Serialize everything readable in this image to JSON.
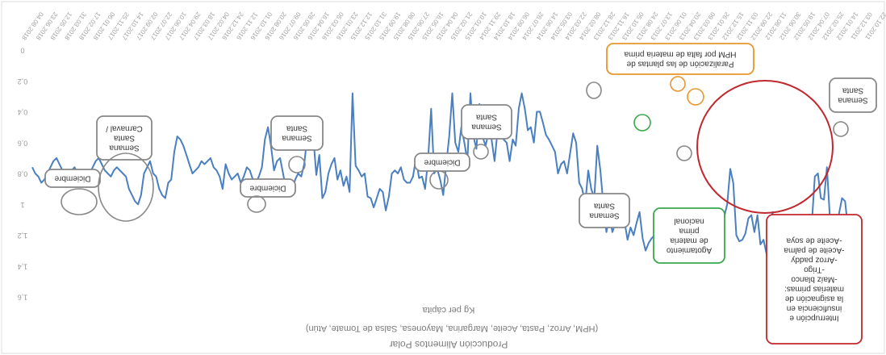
{
  "chart_data": {
    "type": "line",
    "title": "Producción Alimentos Polar",
    "subtitle": "(HPM, Arroz, Pasta, Aceite, Margarina, Mayonesa, Salsa de Tomate, Atún)",
    "ylabel": "Kg per cápita",
    "xlabel": "",
    "y_axis_reversed": true,
    "display_rotated_180": true,
    "ylim": [
      0,
      1.6
    ],
    "y_ticks": [
      "0",
      "0,2",
      "0,4",
      "0,6",
      "0,8",
      "1",
      "1,2",
      "1,4",
      "1,6"
    ],
    "x_tick_labels": [
      "22.10.2011",
      "03.12.2011",
      "14.01.2012",
      "25.02.2012",
      "07.04.2012",
      "19.05.2012",
      "30.06.2012",
      "11.08.2012",
      "22.09.2012",
      "03.11.2012",
      "15.12.2012",
      "26.01.2013",
      "09.03.2013",
      "20.04.2013",
      "01.06.2013",
      "13.07.2013",
      "24.08.2013",
      "05.10.2013",
      "16.11.2013",
      "28.12.2013",
      "08.02.2014",
      "22.03.2014",
      "03.05.2014",
      "14.06.2014",
      "26.07.2014",
      "06.09.2014",
      "18.10.2014",
      "29.11.2014",
      "10.01.2015",
      "21.02.2015",
      "04.04.2015",
      "16.05.2015",
      "27.06.2015",
      "08.08.2015",
      "19.09.2015",
      "31.10.2015",
      "12.12.2015",
      "23.01.2016",
      "05.03.2016",
      "16.04.2016",
      "28.05.2016",
      "09.07.2016",
      "20.08.2016",
      "01.10.2016",
      "12.11.2016",
      "24.12.2016",
      "04.02.2017",
      "18.03.2017",
      "29.04.2017",
      "10.06.2017",
      "22.07.2017",
      "02.09.2017",
      "14.10.2017",
      "25.11.2017",
      "06.01.2018",
      "17.02.2018",
      "31.03.2018",
      "12.05.2018",
      "23.06.2018",
      "04.08.2018"
    ],
    "series": [
      {
        "color": "#4a7fc1",
        "values": [
          1.22,
          1.24,
          1.2,
          1.22,
          1.16,
          0.98,
          0.96,
          1.06,
          1.14,
          1.18,
          1.1,
          0.76,
          0.97,
          0.96,
          0.8,
          0.82,
          1.12,
          1.13,
          1.19,
          1.28,
          1.24,
          1.24,
          1.25,
          1.17,
          1.2,
          1.27,
          1.26,
          1.27,
          1.26,
          1.05,
          1.31,
          1.32,
          1.23,
          1.26,
          1.07,
          1.18,
          1.07,
          1.09,
          1.19,
          1.23,
          1.24,
          1.2,
          0.86,
          0.77,
          1.0,
          1.08,
          1.12,
          1.21,
          1.25,
          1.21,
          1.28,
          1.34,
          1.28,
          1.29,
          1.25,
          1.17,
          1.19,
          1.23,
          1.27,
          1.33,
          1.35,
          1.31,
          1.2,
          1.22,
          1.22,
          1.38,
          1.27,
          1.25,
          1.2,
          1.22,
          1.25,
          1.3,
          1.22,
          1.05,
          1.12,
          1.2,
          1.15,
          1.23,
          1.11,
          1.06,
          1.0,
          1.12,
          1.18,
          1.07,
          1.18,
          1.0,
          0.78,
          0.62,
          0.96,
          0.9,
          0.78,
          1.0,
          0.9,
          0.86,
          0.6,
          0.54,
          0.67,
          0.8,
          0.72,
          0.74,
          0.8,
          0.66,
          0.62,
          0.58,
          0.55,
          0.47,
          0.4,
          0.4,
          0.6,
          0.5,
          0.52,
          0.38,
          0.28,
          0.38,
          0.62,
          0.58,
          0.72,
          0.6,
          0.58,
          0.36,
          0.52,
          0.72,
          0.58,
          0.54,
          0.62,
          0.56,
          0.35,
          0.64,
          0.56,
          0.28,
          0.72,
          0.6,
          0.5,
          0.66,
          0.6,
          0.28,
          0.56,
          0.74,
          0.94,
          0.84,
          0.77,
          0.8,
          0.38,
          0.71,
          0.9,
          0.82,
          0.83,
          0.7,
          0.82,
          0.86,
          0.86,
          0.84,
          0.76,
          0.8,
          0.78,
          0.8,
          0.95,
          1.04,
          0.92,
          0.9,
          0.96,
          1.02,
          0.96,
          0.95,
          0.8,
          0.82,
          0.78,
          0.75,
          0.28,
          0.92,
          0.82,
          0.88,
          0.78,
          0.84,
          0.7,
          0.74,
          0.8,
          0.92,
          0.96,
          0.68,
          0.81,
          0.56,
          0.47,
          0.56,
          0.74,
          0.82,
          0.8,
          0.84,
          0.92,
          0.94,
          0.9,
          0.8,
          0.7,
          0.72,
          0.78,
          0.62,
          0.5,
          0.58,
          0.76,
          0.82,
          0.86,
          0.84,
          0.78,
          0.76,
          0.82,
          0.86,
          0.8,
          0.82,
          0.84,
          0.8,
          0.74,
          0.9,
          0.82,
          0.78,
          0.76,
          0.7,
          0.72,
          0.74,
          0.72,
          0.76,
          0.78,
          0.8,
          0.74,
          0.68,
          0.62,
          0.58,
          0.56,
          0.66,
          0.84,
          0.86,
          0.96,
          0.94,
          0.9,
          0.82,
          0.8,
          0.72,
          0.76,
          0.8,
          0.94,
          1.0,
          0.98,
          0.94,
          0.9,
          0.82,
          0.8,
          0.78,
          0.76,
          0.78,
          0.82,
          0.8,
          0.78,
          0.74,
          0.7,
          0.72,
          0.76,
          0.8,
          0.84,
          0.86,
          0.82,
          0.8,
          0.76,
          0.78,
          0.82,
          0.8,
          0.78,
          0.74,
          0.7,
          0.72,
          0.76,
          0.8,
          0.84,
          0.86,
          0.82,
          0.8,
          0.76
        ]
      }
    ],
    "annotations": [
      {
        "id": "dic1",
        "text": [
          "Diciembre"
        ],
        "border": "#888888",
        "circle_color": "#888888"
      },
      {
        "id": "carnaval",
        "text": [
          "Carnaval /",
          "Santa",
          "Semana"
        ],
        "border": "#888888",
        "circle_color": "#888888"
      },
      {
        "id": "dic2",
        "text": [
          "Diciembre"
        ],
        "border": "#888888",
        "circle_color": "#888888"
      },
      {
        "id": "santa2",
        "text": [
          "Santa",
          "Semana"
        ],
        "border": "#888888",
        "circle_color": "#888888"
      },
      {
        "id": "dic3",
        "text": [
          "Diciembre"
        ],
        "border": "#888888",
        "circle_color": "#888888"
      },
      {
        "id": "santa3",
        "text": [
          "Santa",
          "Semana"
        ],
        "border": "#888888",
        "circle_color": "#888888"
      },
      {
        "id": "santa4",
        "text": [
          "Santa",
          "Semana"
        ],
        "border": "#888888",
        "circle_color": "#888888"
      },
      {
        "id": "agot",
        "text": [
          "nacional",
          "prima",
          "de materia",
          "Agotamiento"
        ],
        "border": "#3aa84a",
        "circle_color": "#3aa84a"
      },
      {
        "id": "hpm",
        "text": [
          "HPM por falta de materia prima",
          "Paralización de las plantas de"
        ],
        "border": "#e8962e",
        "circle_color": "#e8962e"
      },
      {
        "id": "santa5",
        "text": [
          "Santa",
          "Semana"
        ],
        "border": "#888888",
        "circle_color": "#888888"
      },
      {
        "id": "interr",
        "text": [
          "-Aceite de soya",
          "-Aceite de palma",
          "-Arroz paddy",
          "-Trigo",
          "-Maíz blanco",
          "materias primas:",
          "la asignación de",
          "insuficiencia en",
          "Interrupción e"
        ],
        "border": "#c0282d",
        "circle_color": "#c0282d"
      }
    ]
  }
}
